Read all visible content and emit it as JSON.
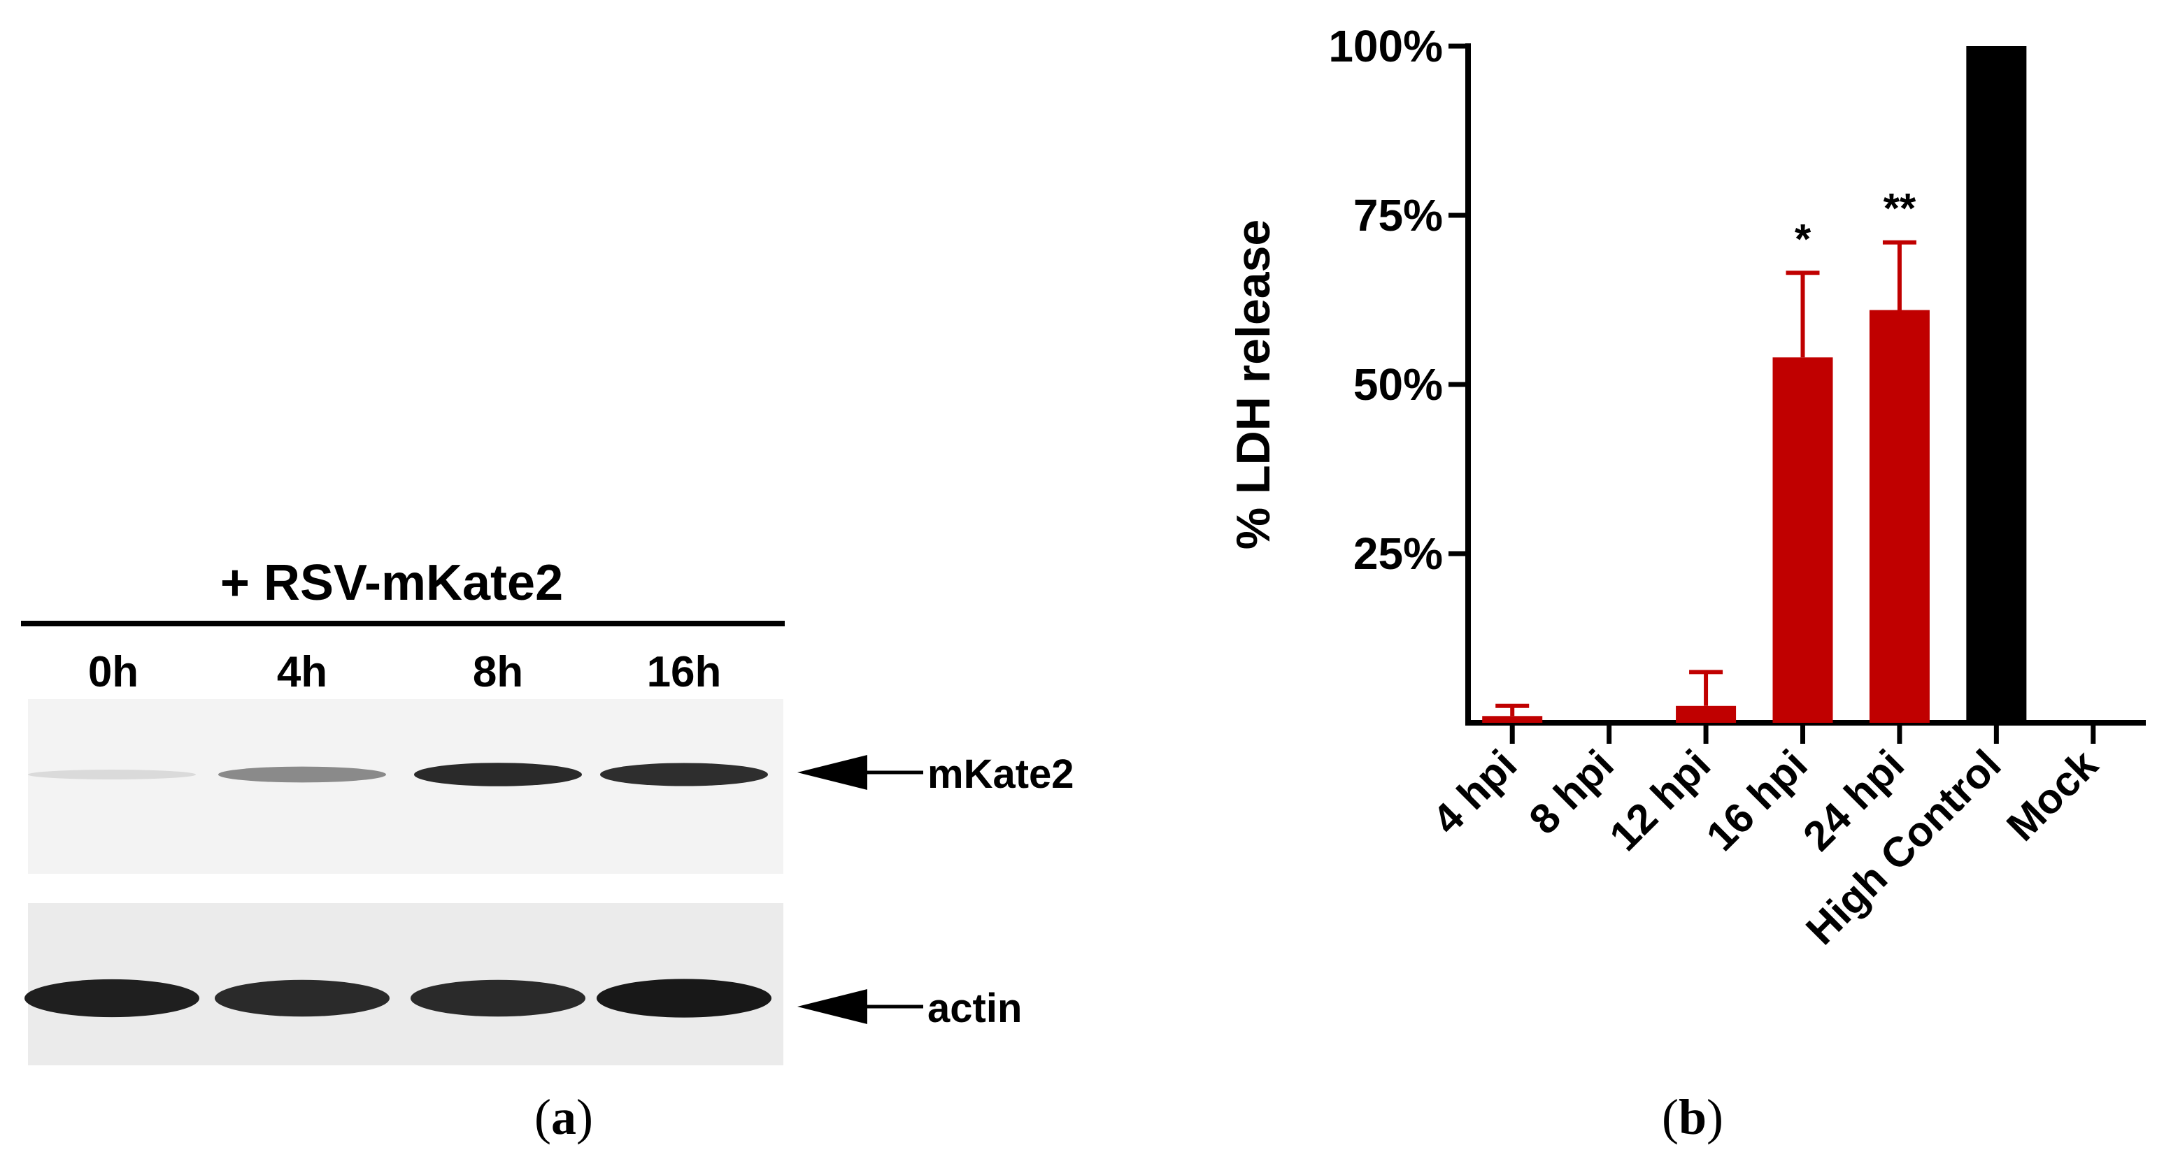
{
  "panels": {
    "a": {
      "label_open": "(",
      "label_letter": "a",
      "label_close": ")",
      "header": "+ RSV-mKate2",
      "lanes": [
        "0h",
        "4h",
        "8h",
        "16h"
      ],
      "band_labels": [
        "mKate2",
        "actin"
      ],
      "mkate2_intensity": [
        0.08,
        0.45,
        0.9,
        0.88
      ],
      "actin_intensity": [
        0.95,
        0.9,
        0.9,
        0.98
      ]
    },
    "b": {
      "label_open": "(",
      "label_letter": "b",
      "label_close": ")"
    }
  },
  "chart_data": {
    "type": "bar",
    "title": "",
    "ylabel": "% LDH release",
    "xlabel": "",
    "ylim": [
      0,
      100
    ],
    "yticks": [
      25,
      50,
      75,
      100
    ],
    "ytick_labels": [
      "25%",
      "50%",
      "75%",
      "100%"
    ],
    "categories": [
      "4 hpi",
      "8 hpi",
      "12 hpi",
      "16 hpi",
      "24 hpi",
      "High Control",
      "Mock"
    ],
    "values": [
      1,
      0,
      2.5,
      54,
      61,
      100,
      0
    ],
    "error": [
      1.5,
      0,
      5,
      12.5,
      10,
      0,
      0
    ],
    "significance": [
      "",
      "",
      "",
      "*",
      "**",
      "",
      ""
    ],
    "colors": [
      "#c00000",
      "#c00000",
      "#c00000",
      "#c00000",
      "#c00000",
      "#000000",
      "#c00000"
    ],
    "grid": false
  }
}
